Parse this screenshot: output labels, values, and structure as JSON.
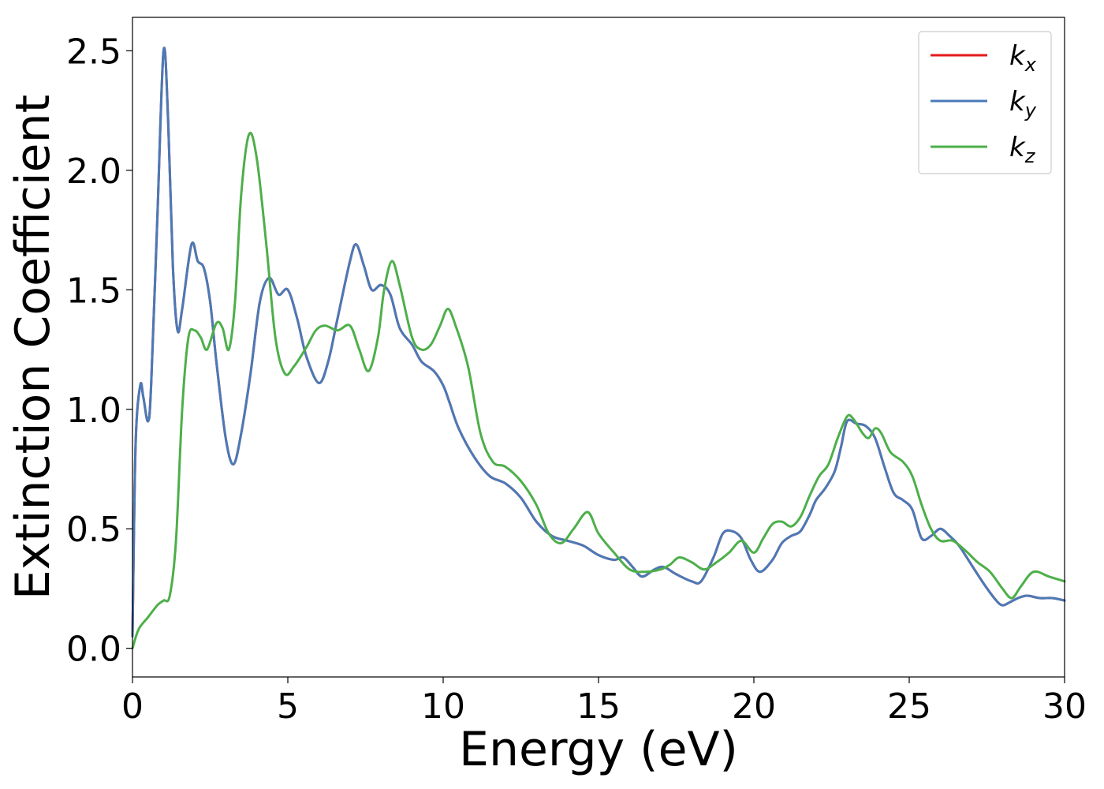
{
  "chart_data": {
    "type": "line",
    "title": "",
    "xlabel": "Energy (eV)",
    "ylabel": "Extinction Coefficient",
    "xlim": [
      0,
      30
    ],
    "ylim": [
      -0.12,
      2.64
    ],
    "xticks": [
      0,
      5,
      10,
      15,
      20,
      25,
      30
    ],
    "xtick_labels": [
      "0",
      "5",
      "10",
      "15",
      "20",
      "25",
      "30"
    ],
    "yticks": [
      0.0,
      0.5,
      1.0,
      1.5,
      2.0,
      2.5
    ],
    "ytick_labels": [
      "0.0",
      "0.5",
      "1.0",
      "1.5",
      "2.0",
      "2.5"
    ],
    "grid": false,
    "legend_position": "top-right",
    "series": [
      {
        "name": "k_x",
        "label_base": "k",
        "label_sub": "x",
        "color": "#e41a1c",
        "x": [
          0,
          0.1,
          0.25,
          0.35,
          0.5,
          0.6,
          0.8,
          1.0,
          1.15,
          1.3,
          1.45,
          1.6,
          1.9,
          2.1,
          2.3,
          2.5,
          2.7,
          3.0,
          3.25,
          3.5,
          3.8,
          4.1,
          4.4,
          4.7,
          5.0,
          5.3,
          5.6,
          6.0,
          6.3,
          6.6,
          7.0,
          7.2,
          7.45,
          7.7,
          8.0,
          8.3,
          8.6,
          9.0,
          9.3,
          9.7,
          10.0,
          10.2,
          10.5,
          11.0,
          11.5,
          12.0,
          12.5,
          13.0,
          13.5,
          14.0,
          14.5,
          15.0,
          15.5,
          15.8,
          16.1,
          16.4,
          16.8,
          17.1,
          17.5,
          18.0,
          18.3,
          18.7,
          19.0,
          19.3,
          19.6,
          19.9,
          20.2,
          20.6,
          20.9,
          21.2,
          21.5,
          21.8,
          22.0,
          22.3,
          22.6,
          22.8,
          23.0,
          23.3,
          23.6,
          23.9,
          24.2,
          24.5,
          24.8,
          25.1,
          25.4,
          25.7,
          26.0,
          26.3,
          26.6,
          27.0,
          27.4,
          27.8,
          28.0,
          28.2,
          28.5,
          28.8,
          29.2,
          29.6,
          30.0
        ],
        "values": [
          0.05,
          0.85,
          1.1,
          1.05,
          0.95,
          1.1,
          1.8,
          2.5,
          2.2,
          1.6,
          1.33,
          1.42,
          1.69,
          1.62,
          1.59,
          1.45,
          1.2,
          0.88,
          0.77,
          0.9,
          1.15,
          1.45,
          1.55,
          1.48,
          1.5,
          1.38,
          1.22,
          1.11,
          1.2,
          1.38,
          1.62,
          1.69,
          1.6,
          1.5,
          1.52,
          1.48,
          1.34,
          1.27,
          1.2,
          1.16,
          1.1,
          1.03,
          0.92,
          0.8,
          0.72,
          0.69,
          0.63,
          0.53,
          0.47,
          0.45,
          0.43,
          0.39,
          0.37,
          0.38,
          0.34,
          0.3,
          0.33,
          0.34,
          0.31,
          0.28,
          0.28,
          0.38,
          0.48,
          0.49,
          0.46,
          0.37,
          0.32,
          0.37,
          0.44,
          0.47,
          0.49,
          0.56,
          0.62,
          0.67,
          0.74,
          0.84,
          0.95,
          0.94,
          0.93,
          0.88,
          0.76,
          0.65,
          0.62,
          0.58,
          0.46,
          0.47,
          0.5,
          0.47,
          0.43,
          0.35,
          0.27,
          0.2,
          0.18,
          0.19,
          0.21,
          0.22,
          0.21,
          0.21,
          0.2
        ]
      },
      {
        "name": "k_y",
        "label_base": "k",
        "label_sub": "y",
        "color": "#4a7ab7",
        "x": [
          0,
          0.1,
          0.25,
          0.35,
          0.5,
          0.6,
          0.8,
          1.0,
          1.15,
          1.3,
          1.45,
          1.6,
          1.9,
          2.1,
          2.3,
          2.5,
          2.7,
          3.0,
          3.25,
          3.5,
          3.8,
          4.1,
          4.4,
          4.7,
          5.0,
          5.3,
          5.6,
          6.0,
          6.3,
          6.6,
          7.0,
          7.2,
          7.45,
          7.7,
          8.0,
          8.3,
          8.6,
          9.0,
          9.3,
          9.7,
          10.0,
          10.2,
          10.5,
          11.0,
          11.5,
          12.0,
          12.5,
          13.0,
          13.5,
          14.0,
          14.5,
          15.0,
          15.5,
          15.8,
          16.1,
          16.4,
          16.8,
          17.1,
          17.5,
          18.0,
          18.3,
          18.7,
          19.0,
          19.3,
          19.6,
          19.9,
          20.2,
          20.6,
          20.9,
          21.2,
          21.5,
          21.8,
          22.0,
          22.3,
          22.6,
          22.8,
          23.0,
          23.3,
          23.6,
          23.9,
          24.2,
          24.5,
          24.8,
          25.1,
          25.4,
          25.7,
          26.0,
          26.3,
          26.6,
          27.0,
          27.4,
          27.8,
          28.0,
          28.2,
          28.5,
          28.8,
          29.2,
          29.6,
          30.0
        ],
        "values": [
          0.05,
          0.85,
          1.1,
          1.05,
          0.95,
          1.1,
          1.8,
          2.5,
          2.2,
          1.6,
          1.33,
          1.42,
          1.69,
          1.62,
          1.59,
          1.45,
          1.2,
          0.88,
          0.77,
          0.9,
          1.15,
          1.45,
          1.55,
          1.48,
          1.5,
          1.38,
          1.22,
          1.11,
          1.2,
          1.38,
          1.62,
          1.69,
          1.6,
          1.5,
          1.52,
          1.48,
          1.34,
          1.27,
          1.2,
          1.16,
          1.1,
          1.03,
          0.92,
          0.8,
          0.72,
          0.69,
          0.63,
          0.53,
          0.47,
          0.45,
          0.43,
          0.39,
          0.37,
          0.38,
          0.34,
          0.3,
          0.33,
          0.34,
          0.31,
          0.28,
          0.28,
          0.38,
          0.48,
          0.49,
          0.46,
          0.37,
          0.32,
          0.37,
          0.44,
          0.47,
          0.49,
          0.56,
          0.62,
          0.67,
          0.74,
          0.84,
          0.95,
          0.94,
          0.93,
          0.88,
          0.76,
          0.65,
          0.62,
          0.58,
          0.46,
          0.47,
          0.5,
          0.47,
          0.43,
          0.35,
          0.27,
          0.2,
          0.18,
          0.19,
          0.21,
          0.22,
          0.21,
          0.21,
          0.2
        ]
      },
      {
        "name": "k_z",
        "label_base": "k",
        "label_sub": "z",
        "color": "#4daf4a",
        "x": [
          0,
          0.2,
          0.5,
          0.8,
          1.0,
          1.2,
          1.4,
          1.6,
          1.8,
          2.0,
          2.2,
          2.4,
          2.7,
          2.9,
          3.1,
          3.3,
          3.5,
          3.75,
          4.0,
          4.3,
          4.6,
          4.9,
          5.2,
          5.6,
          5.9,
          6.2,
          6.6,
          7.0,
          7.3,
          7.6,
          7.9,
          8.1,
          8.35,
          8.6,
          9.0,
          9.3,
          9.6,
          9.9,
          10.15,
          10.4,
          10.8,
          11.2,
          11.6,
          12.0,
          12.5,
          13.0,
          13.4,
          13.8,
          14.2,
          14.65,
          15.0,
          15.5,
          16.0,
          16.5,
          17.0,
          17.3,
          17.6,
          18.0,
          18.4,
          18.8,
          19.2,
          19.6,
          20.0,
          20.3,
          20.6,
          20.9,
          21.2,
          21.5,
          21.8,
          22.1,
          22.4,
          22.7,
          23.0,
          23.2,
          23.5,
          23.7,
          23.9,
          24.1,
          24.4,
          24.8,
          25.1,
          25.4,
          25.7,
          26.0,
          26.4,
          26.8,
          27.2,
          27.6,
          28.0,
          28.3,
          28.6,
          29.0,
          29.5,
          30.0
        ],
        "values": [
          0.0,
          0.08,
          0.13,
          0.18,
          0.2,
          0.22,
          0.45,
          1.0,
          1.3,
          1.33,
          1.3,
          1.25,
          1.36,
          1.34,
          1.25,
          1.45,
          1.9,
          2.15,
          2.05,
          1.7,
          1.3,
          1.15,
          1.18,
          1.26,
          1.33,
          1.35,
          1.33,
          1.35,
          1.25,
          1.16,
          1.3,
          1.5,
          1.62,
          1.52,
          1.3,
          1.25,
          1.27,
          1.35,
          1.42,
          1.35,
          1.18,
          0.9,
          0.78,
          0.76,
          0.7,
          0.6,
          0.48,
          0.44,
          0.5,
          0.57,
          0.48,
          0.4,
          0.33,
          0.32,
          0.33,
          0.35,
          0.38,
          0.36,
          0.33,
          0.36,
          0.4,
          0.45,
          0.4,
          0.46,
          0.52,
          0.53,
          0.51,
          0.55,
          0.64,
          0.72,
          0.77,
          0.88,
          0.97,
          0.96,
          0.9,
          0.88,
          0.92,
          0.9,
          0.82,
          0.78,
          0.72,
          0.6,
          0.5,
          0.45,
          0.45,
          0.41,
          0.36,
          0.32,
          0.25,
          0.21,
          0.26,
          0.32,
          0.3,
          0.28
        ]
      }
    ]
  }
}
